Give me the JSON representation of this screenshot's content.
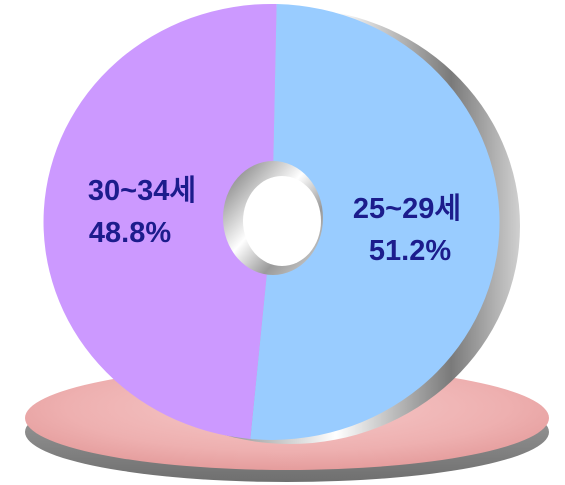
{
  "chart_data": {
    "type": "pie",
    "title": "",
    "slices": [
      {
        "label": "25~29세",
        "percent_label": "51.2%",
        "value": 51.2,
        "color": "#99ccff"
      },
      {
        "label": "30~34세",
        "percent_label": "48.8%",
        "value": 48.8,
        "color": "#cc99ff"
      }
    ],
    "hole": true,
    "base_color": "#f0b4b4"
  }
}
